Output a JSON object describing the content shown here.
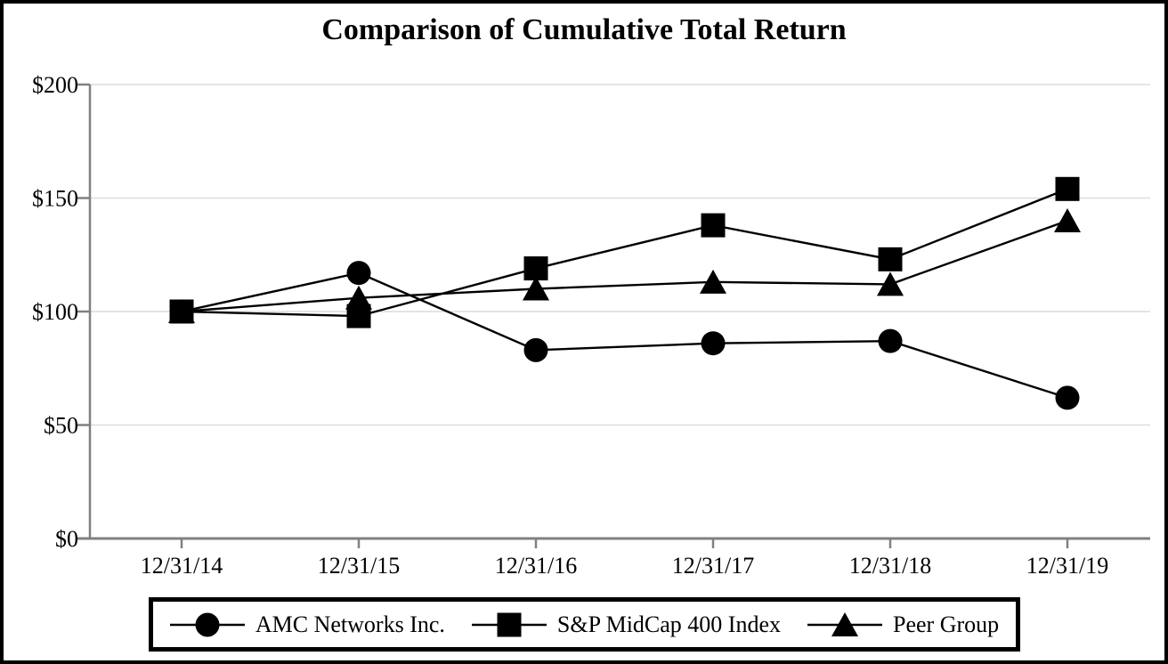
{
  "title": "Comparison of Cumulative Total Return",
  "chart_data": {
    "type": "line",
    "title": "Comparison of Cumulative Total Return",
    "categories": [
      "12/31/14",
      "12/31/15",
      "12/31/16",
      "12/31/17",
      "12/31/18",
      "12/31/19"
    ],
    "series": [
      {
        "name": "AMC Networks Inc.",
        "marker": "circle",
        "values": [
          100,
          117,
          83,
          86,
          87,
          62
        ]
      },
      {
        "name": "S&P MidCap 400 Index",
        "marker": "square",
        "values": [
          100,
          98,
          119,
          138,
          123,
          154
        ]
      },
      {
        "name": "Peer Group",
        "marker": "triangle",
        "values": [
          100,
          106,
          110,
          113,
          112,
          140
        ]
      }
    ],
    "y_tick_labels": [
      "$0",
      "$50",
      "$100",
      "$150",
      "$200"
    ],
    "y_tick_values": [
      0,
      50,
      100,
      150,
      200
    ],
    "ylim": [
      0,
      200
    ],
    "grid": true,
    "legend_position": "bottom",
    "colors": {
      "series": "#000000",
      "axis": "#808080",
      "gridline": "#dcdcdc",
      "background": "#ffffff",
      "frame": "#000000",
      "text": "#000000"
    }
  }
}
